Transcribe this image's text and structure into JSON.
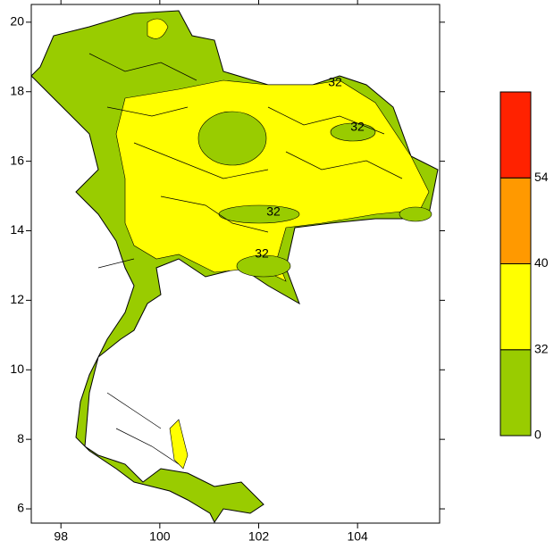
{
  "map": {
    "xlim": [
      97.4,
      105.66
    ],
    "xticks": [
      98,
      100,
      102,
      104
    ],
    "ylim": [
      5.59,
      20.51
    ],
    "yticks": [
      6,
      8,
      10,
      12,
      14,
      16,
      18,
      20
    ],
    "colorbar": {
      "levels": [
        0,
        32,
        40,
        54
      ],
      "colors": [
        "#99cc00",
        "#ffff00",
        "#ff9900",
        "#ff2200"
      ]
    },
    "contour_labels": [
      "32",
      "32",
      "32",
      "32"
    ]
  }
}
